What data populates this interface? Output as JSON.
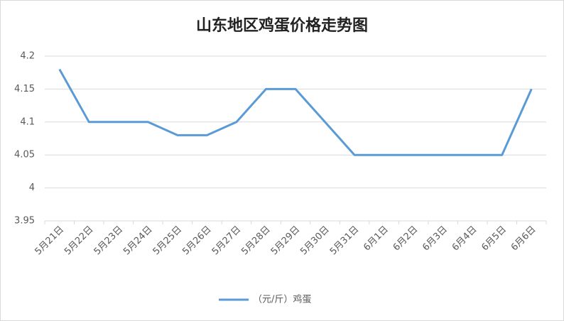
{
  "chart_data": {
    "type": "line",
    "title": "山东地区鸡蛋价格走势图",
    "categories": [
      "5月21日",
      "5月22日",
      "5月23日",
      "5月24日",
      "5月25日",
      "5月26日",
      "5月27日",
      "5月28日",
      "5月29日",
      "5月30日",
      "5月31日",
      "6月1日",
      "6月2日",
      "6月3日",
      "6月4日",
      "6月5日",
      "6月6日"
    ],
    "series": [
      {
        "name": "（元/斤）鸡蛋",
        "color": "#5b9bd5",
        "values": [
          4.18,
          4.1,
          4.1,
          4.1,
          4.08,
          4.08,
          4.1,
          4.15,
          4.15,
          4.1,
          4.05,
          4.05,
          4.05,
          4.05,
          4.05,
          4.05,
          4.15
        ]
      }
    ],
    "ylim": [
      3.95,
      4.2
    ],
    "yticks": [
      3.95,
      4,
      4.05,
      4.1,
      4.15,
      4.2
    ],
    "grid": true,
    "legend": "bottom"
  }
}
